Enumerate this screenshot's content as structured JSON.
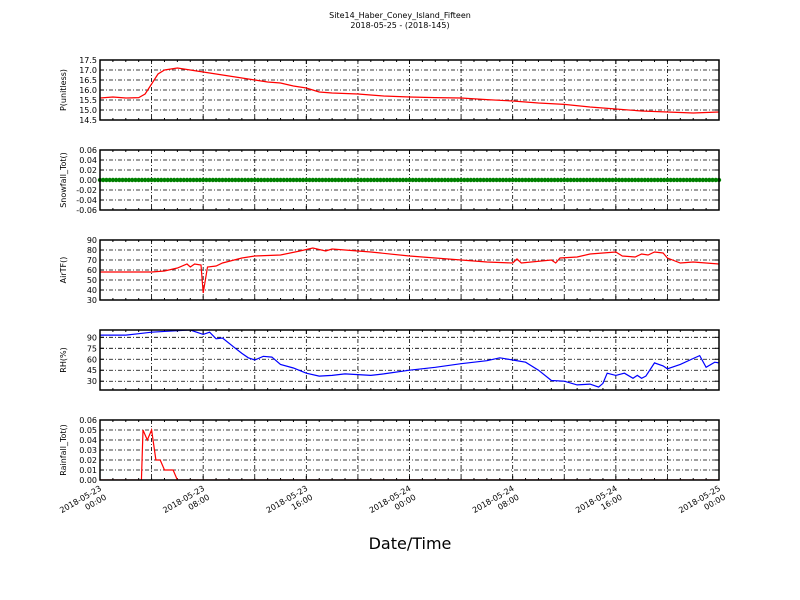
{
  "title": "Site14_Haber_Coney_Island_Fifteen",
  "subtitle": "2018-05-25 - (2018-145)",
  "chart_data": [
    {
      "type": "line",
      "ylabel": "P(unitless)",
      "ylim": [
        14.5,
        17.5
      ],
      "yticks": [
        "14.5",
        "15.0",
        "15.5",
        "16.0",
        "16.5",
        "17.0",
        "17.5"
      ],
      "color": "#ff0000",
      "grid": true,
      "points": [
        [
          "2018-05-23 00:00",
          15.6
        ],
        [
          "2018-05-23 01:00",
          15.65
        ],
        [
          "2018-05-23 02:00",
          15.6
        ],
        [
          "2018-05-23 03:00",
          15.62
        ],
        [
          "2018-05-23 03:30",
          15.8
        ],
        [
          "2018-05-23 04:00",
          16.3
        ],
        [
          "2018-05-23 04:30",
          16.8
        ],
        [
          "2018-05-23 05:00",
          17.0
        ],
        [
          "2018-05-23 06:00",
          17.1
        ],
        [
          "2018-05-23 07:00",
          17.0
        ],
        [
          "2018-05-23 08:00",
          16.9
        ],
        [
          "2018-05-23 09:00",
          16.8
        ],
        [
          "2018-05-23 10:00",
          16.7
        ],
        [
          "2018-05-23 11:00",
          16.6
        ],
        [
          "2018-05-23 12:00",
          16.5
        ],
        [
          "2018-05-23 13:00",
          16.4
        ],
        [
          "2018-05-23 14:00",
          16.35
        ],
        [
          "2018-05-23 15:00",
          16.2
        ],
        [
          "2018-05-23 16:00",
          16.1
        ],
        [
          "2018-05-23 17:00",
          15.9
        ],
        [
          "2018-05-23 18:00",
          15.85
        ],
        [
          "2018-05-23 20:00",
          15.8
        ],
        [
          "2018-05-23 22:00",
          15.7
        ],
        [
          "2018-05-24 00:00",
          15.65
        ],
        [
          "2018-05-24 02:00",
          15.62
        ],
        [
          "2018-05-24 04:00",
          15.6
        ],
        [
          "2018-05-24 06:00",
          15.52
        ],
        [
          "2018-05-24 08:00",
          15.45
        ],
        [
          "2018-05-24 10:00",
          15.35
        ],
        [
          "2018-05-24 12:00",
          15.28
        ],
        [
          "2018-05-24 14:00",
          15.15
        ],
        [
          "2018-05-24 16:00",
          15.05
        ],
        [
          "2018-05-24 18:00",
          14.95
        ],
        [
          "2018-05-24 20:00",
          14.9
        ],
        [
          "2018-05-24 22:00",
          14.85
        ],
        [
          "2018-05-25 00:00",
          14.9
        ]
      ]
    },
    {
      "type": "scatter",
      "ylabel": "Snowfall_Tot()",
      "ylim": [
        -0.06,
        0.06
      ],
      "yticks": [
        "-0.06",
        "-0.04",
        "-0.02",
        "0.00",
        "0.02",
        "0.04",
        "0.06"
      ],
      "color": "#008000",
      "grid": true,
      "constant_value": 0.0,
      "x_range": [
        "2018-05-23 00:00",
        "2018-05-25 00:00"
      ]
    },
    {
      "type": "line",
      "ylabel": "AirTF()",
      "ylim": [
        30,
        90
      ],
      "yticks": [
        "30",
        "40",
        "50",
        "60",
        "70",
        "80",
        "90"
      ],
      "color": "#ff0000",
      "grid": true,
      "points": [
        [
          "2018-05-23 00:00",
          58
        ],
        [
          "2018-05-23 04:00",
          58
        ],
        [
          "2018-05-23 05:00",
          59
        ],
        [
          "2018-05-23 06:00",
          62
        ],
        [
          "2018-05-23 06:45",
          66
        ],
        [
          "2018-05-23 07:00",
          63
        ],
        [
          "2018-05-23 07:20",
          66
        ],
        [
          "2018-05-23 07:50",
          65
        ],
        [
          "2018-05-23 08:00",
          37
        ],
        [
          "2018-05-23 08:20",
          63
        ],
        [
          "2018-05-23 09:00",
          64
        ],
        [
          "2018-05-23 09:30",
          67
        ],
        [
          "2018-05-23 11:00",
          72
        ],
        [
          "2018-05-23 12:00",
          74
        ],
        [
          "2018-05-23 14:00",
          75
        ],
        [
          "2018-05-23 15:30",
          79
        ],
        [
          "2018-05-23 16:30",
          82
        ],
        [
          "2018-05-23 17:30",
          79
        ],
        [
          "2018-05-23 18:00",
          81
        ],
        [
          "2018-05-23 21:00",
          78
        ],
        [
          "2018-05-24 00:00",
          74
        ],
        [
          "2018-05-24 03:00",
          71
        ],
        [
          "2018-05-24 06:00",
          68
        ],
        [
          "2018-05-24 08:00",
          67
        ],
        [
          "2018-05-24 08:20",
          71
        ],
        [
          "2018-05-24 08:40",
          67
        ],
        [
          "2018-05-24 11:00",
          70
        ],
        [
          "2018-05-24 11:20",
          67
        ],
        [
          "2018-05-24 11:40",
          72
        ],
        [
          "2018-05-24 13:00",
          73
        ],
        [
          "2018-05-24 14:00",
          76
        ],
        [
          "2018-05-24 16:00",
          78
        ],
        [
          "2018-05-24 16:30",
          74
        ],
        [
          "2018-05-24 17:30",
          73
        ],
        [
          "2018-05-24 18:00",
          76
        ],
        [
          "2018-05-24 18:30",
          75
        ],
        [
          "2018-05-24 19:00",
          78
        ],
        [
          "2018-05-24 19:40",
          77
        ],
        [
          "2018-05-24 20:00",
          72
        ],
        [
          "2018-05-24 21:00",
          67
        ],
        [
          "2018-05-24 22:00",
          68
        ],
        [
          "2018-05-24 23:00",
          67
        ],
        [
          "2018-05-25 00:00",
          66
        ]
      ]
    },
    {
      "type": "line",
      "ylabel": "RH(%)",
      "ylim": [
        18,
        100
      ],
      "yticks": [
        "30",
        "45",
        "60",
        "75",
        "90"
      ],
      "color": "#0000ff",
      "grid": true,
      "points": [
        [
          "2018-05-23 00:00",
          93
        ],
        [
          "2018-05-23 02:00",
          93
        ],
        [
          "2018-05-23 03:00",
          95
        ],
        [
          "2018-05-23 04:00",
          97
        ],
        [
          "2018-05-23 06:00",
          99
        ],
        [
          "2018-05-23 07:00",
          100
        ],
        [
          "2018-05-23 08:00",
          94
        ],
        [
          "2018-05-23 08:30",
          97
        ],
        [
          "2018-05-23 09:00",
          88
        ],
        [
          "2018-05-23 09:30",
          89
        ],
        [
          "2018-05-23 10:30",
          75
        ],
        [
          "2018-05-23 11:00",
          68
        ],
        [
          "2018-05-23 11:30",
          62
        ],
        [
          "2018-05-23 12:00",
          59
        ],
        [
          "2018-05-23 12:40",
          64
        ],
        [
          "2018-05-23 13:20",
          63
        ],
        [
          "2018-05-23 14:00",
          53
        ],
        [
          "2018-05-23 15:00",
          48
        ],
        [
          "2018-05-23 16:00",
          41
        ],
        [
          "2018-05-23 17:00",
          37
        ],
        [
          "2018-05-23 18:00",
          38
        ],
        [
          "2018-05-23 19:00",
          40
        ],
        [
          "2018-05-23 21:00",
          38
        ],
        [
          "2018-05-23 22:00",
          40
        ],
        [
          "2018-05-24 00:00",
          45
        ],
        [
          "2018-05-24 02:00",
          49
        ],
        [
          "2018-05-24 04:00",
          54
        ],
        [
          "2018-05-24 06:00",
          58
        ],
        [
          "2018-05-24 07:00",
          62
        ],
        [
          "2018-05-24 08:00",
          59
        ],
        [
          "2018-05-24 09:00",
          56
        ],
        [
          "2018-05-24 10:00",
          45
        ],
        [
          "2018-05-24 11:00",
          31
        ],
        [
          "2018-05-24 12:00",
          30
        ],
        [
          "2018-05-24 13:00",
          25
        ],
        [
          "2018-05-24 14:00",
          26
        ],
        [
          "2018-05-24 14:40",
          22
        ],
        [
          "2018-05-24 15:00",
          27
        ],
        [
          "2018-05-24 15:20",
          41
        ],
        [
          "2018-05-24 16:00",
          38
        ],
        [
          "2018-05-24 16:40",
          41
        ],
        [
          "2018-05-24 17:20",
          34
        ],
        [
          "2018-05-24 17:40",
          38
        ],
        [
          "2018-05-24 18:00",
          34
        ],
        [
          "2018-05-24 18:20",
          37
        ],
        [
          "2018-05-24 19:00",
          55
        ],
        [
          "2018-05-24 19:40",
          51
        ],
        [
          "2018-05-24 20:00",
          47
        ],
        [
          "2018-05-24 21:00",
          53
        ],
        [
          "2018-05-24 22:00",
          61
        ],
        [
          "2018-05-24 22:30",
          65
        ],
        [
          "2018-05-24 23:00",
          49
        ],
        [
          "2018-05-24 23:40",
          56
        ],
        [
          "2018-05-25 00:00",
          55
        ]
      ]
    },
    {
      "type": "line",
      "ylabel": "Rainfall_Tot()",
      "ylim": [
        0,
        0.06
      ],
      "yticks": [
        "0.00",
        "0.01",
        "0.02",
        "0.03",
        "0.04",
        "0.05",
        "0.06"
      ],
      "color": "#ff0000",
      "grid": true,
      "points": [
        [
          "2018-05-23 00:00",
          0
        ],
        [
          "2018-05-23 03:00",
          0
        ],
        [
          "2018-05-23 03:10",
          -0.02
        ],
        [
          "2018-05-23 03:20",
          0.05
        ],
        [
          "2018-05-23 03:40",
          0.04
        ],
        [
          "2018-05-23 04:00",
          0.05
        ],
        [
          "2018-05-23 04:20",
          0.02
        ],
        [
          "2018-05-23 04:40",
          0.02
        ],
        [
          "2018-05-23 05:00",
          0.01
        ],
        [
          "2018-05-23 05:40",
          0.01
        ],
        [
          "2018-05-23 06:00",
          0
        ],
        [
          "2018-05-25 00:00",
          0
        ]
      ]
    }
  ],
  "xaxis": {
    "xlabel": "Date/Time",
    "range": [
      "2018-05-23 00:00",
      "2018-05-25 00:00"
    ],
    "ticks": [
      [
        "2018-05-23",
        "00:00"
      ],
      [
        "2018-05-23",
        "08:00"
      ],
      [
        "2018-05-23",
        "16:00"
      ],
      [
        "2018-05-24",
        "00:00"
      ],
      [
        "2018-05-24",
        "08:00"
      ],
      [
        "2018-05-24",
        "16:00"
      ],
      [
        "2018-05-25",
        "00:00"
      ]
    ]
  }
}
